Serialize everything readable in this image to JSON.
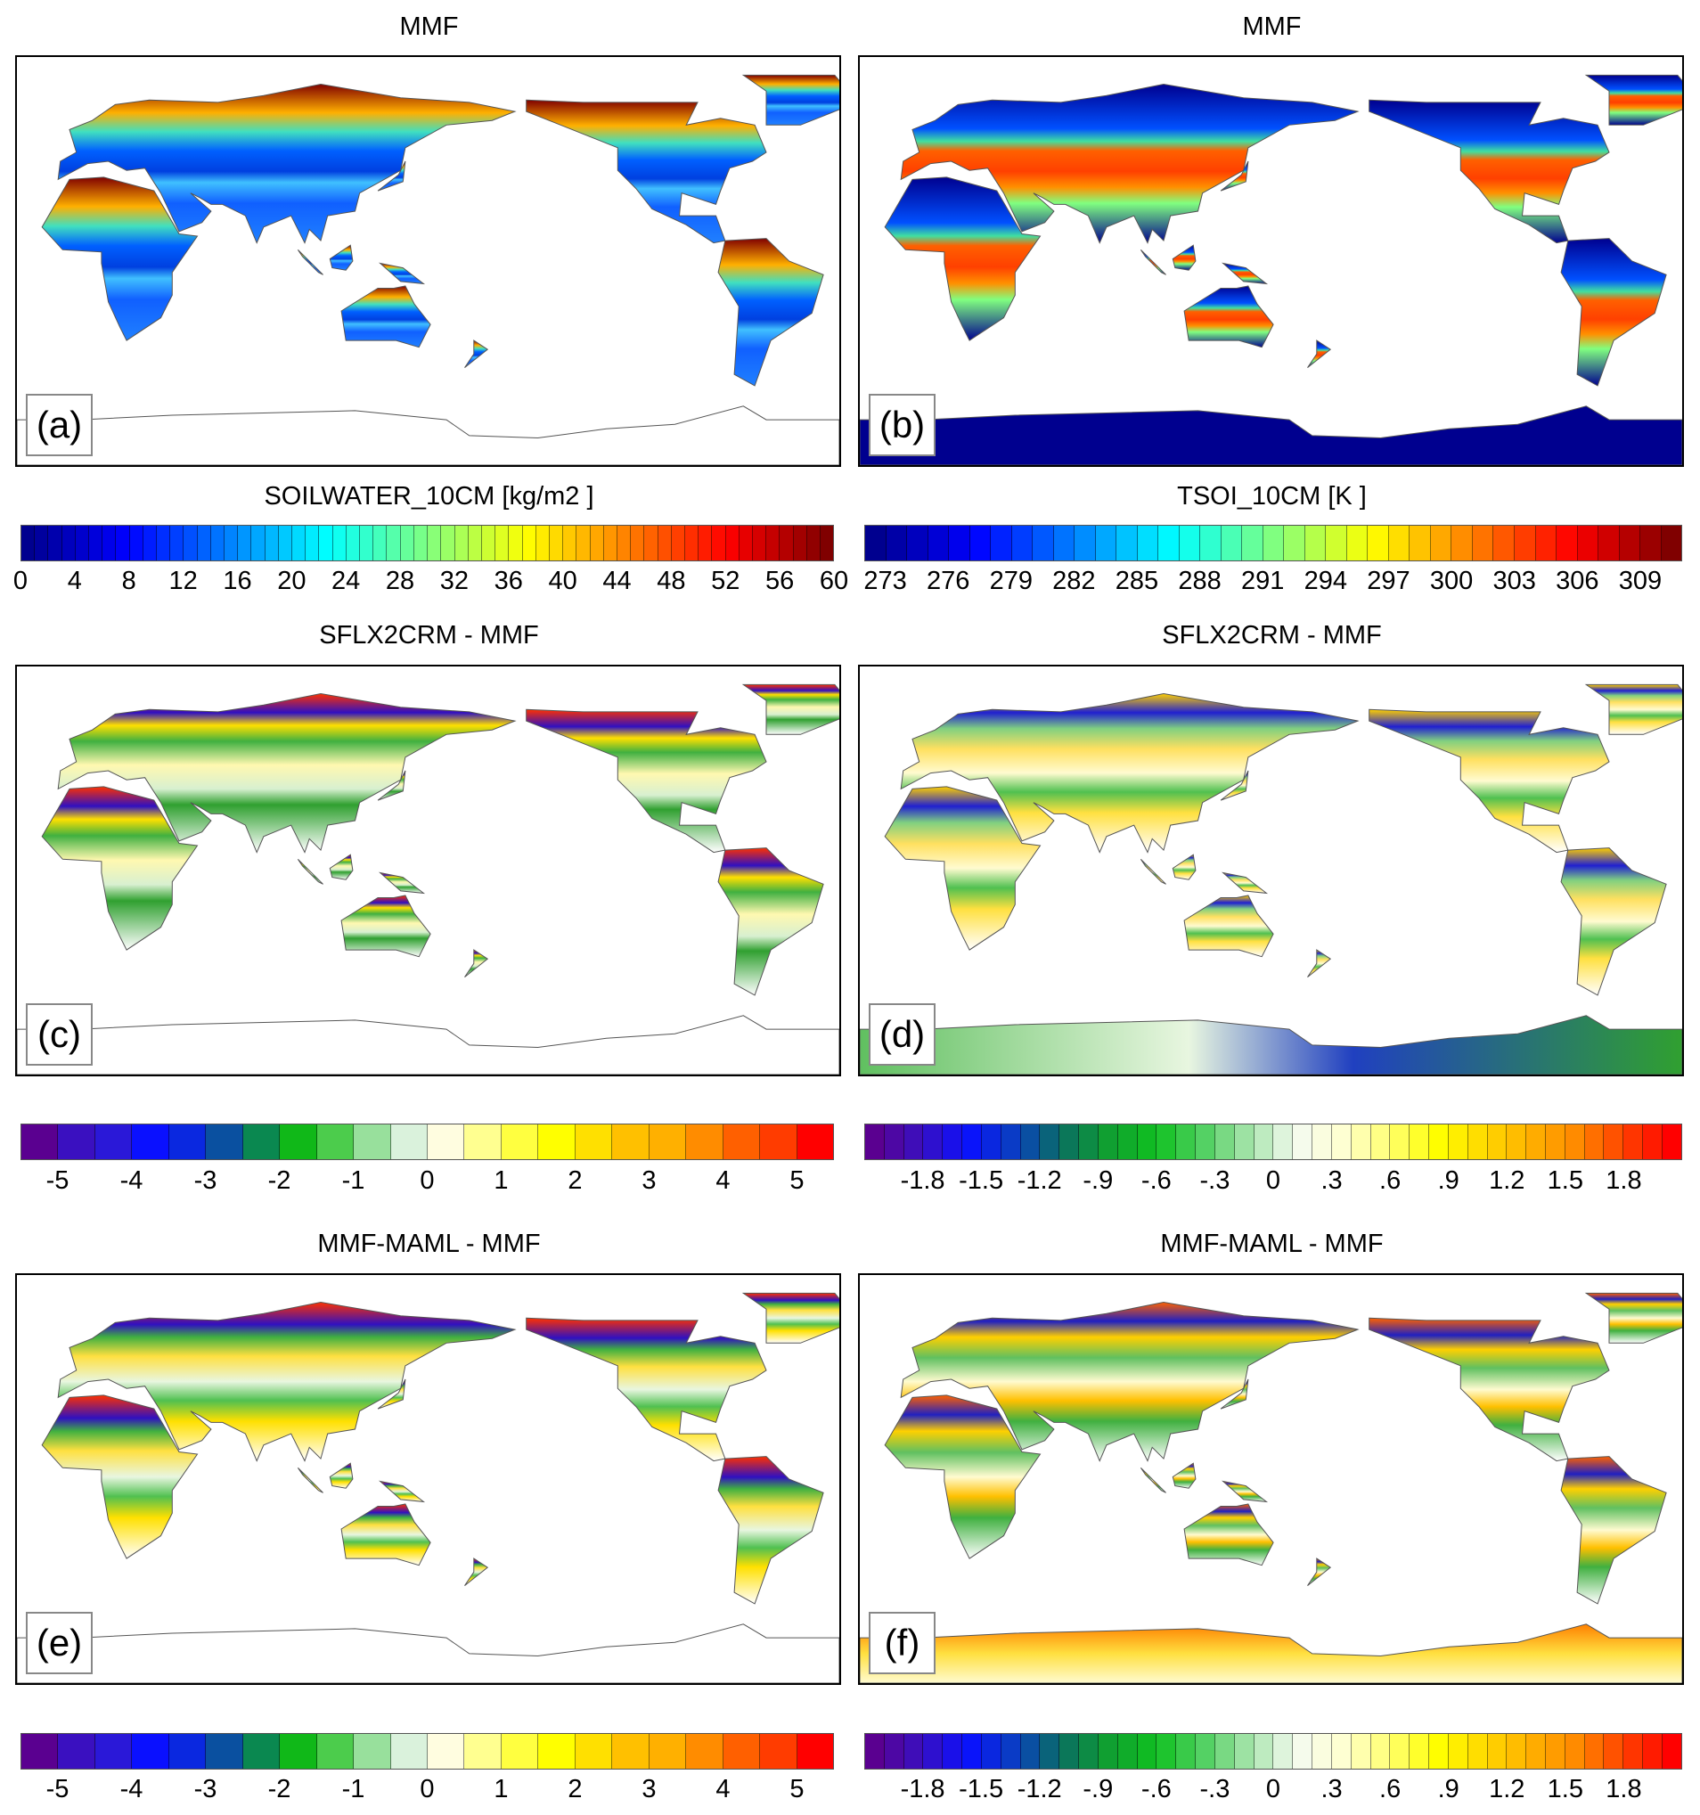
{
  "chart_data": [
    {
      "panel": "(a)",
      "title": "MMF",
      "variable": "SOILWATER_10CM [kg/m2 ]",
      "type": "heatmap",
      "levels": {
        "min": 0,
        "max": 60,
        "step": 1
      },
      "tick_labels": [
        "0",
        "4",
        "8",
        "12",
        "16",
        "20",
        "24",
        "28",
        "32",
        "36",
        "40",
        "44",
        "48",
        "52",
        "56",
        "60"
      ],
      "colormap": [
        "#00008f",
        "#0000ff",
        "#0080ff",
        "#00ffff",
        "#80ff80",
        "#ffff00",
        "#ff8000",
        "#ff0000",
        "#800000"
      ]
    },
    {
      "panel": "(b)",
      "title": "MMF",
      "variable": "TSOI_10CM [K ]",
      "type": "heatmap",
      "levels": {
        "min": 272,
        "max": 311,
        "step": 1
      },
      "tick_labels": [
        "273",
        "276",
        "279",
        "282",
        "285",
        "288",
        "291",
        "294",
        "297",
        "300",
        "303",
        "306",
        "309"
      ],
      "colormap": [
        "#00008f",
        "#0000ff",
        "#0080ff",
        "#00ffff",
        "#80ff80",
        "#ffff00",
        "#ff8000",
        "#ff0000",
        "#800000"
      ]
    },
    {
      "panel": "(c)",
      "title": "SFLX2CRM - MMF",
      "variable": "",
      "type": "heatmap",
      "levels": {
        "min": -5.5,
        "max": 5.5,
        "step": 0.5
      },
      "tick_labels": [
        "-5",
        "-4",
        "-3",
        "-2",
        "-1",
        "0",
        "1",
        "2",
        "3",
        "4",
        "5"
      ],
      "colormap": [
        "#5a0090",
        "#3a10c0",
        "#2a18d8",
        "#0a10ff",
        "#0a28e0",
        "#0a50a0",
        "#0a8850",
        "#10b818",
        "#4ccc4c",
        "#98e09c",
        "#daf2dc",
        "#fffde0",
        "#ffff90",
        "#ffff40",
        "#ffff00",
        "#ffe000",
        "#ffc000",
        "#ffb000",
        "#ff8c00",
        "#ff6000",
        "#ff3c00",
        "#ff0000"
      ]
    },
    {
      "panel": "(d)",
      "title": "SFLX2CRM - MMF",
      "variable": "",
      "type": "heatmap",
      "levels": {
        "min": -2.1,
        "max": 2.1,
        "step": 0.1
      },
      "tick_labels": [
        "-1.8",
        "-1.5",
        "-1.2",
        "-.9",
        "-.6",
        "-.3",
        "0",
        ".3",
        ".6",
        ".9",
        "1.2",
        "1.5",
        "1.8"
      ],
      "colormap": [
        "#5a0090",
        "#3a10c0",
        "#0a10ff",
        "#0a40c0",
        "#0a7060",
        "#10a030",
        "#10c020",
        "#50d060",
        "#a8e4ac",
        "#f4fbf0",
        "#ffffd0",
        "#ffff70",
        "#ffff00",
        "#ffd800",
        "#ffb000",
        "#ff8800",
        "#ff4000",
        "#ff0000"
      ]
    },
    {
      "panel": "(e)",
      "title": "MMF-MAML - MMF",
      "variable": "",
      "type": "heatmap",
      "levels": {
        "min": -5.5,
        "max": 5.5,
        "step": 0.5
      },
      "tick_labels": [
        "-5",
        "-4",
        "-3",
        "-2",
        "-1",
        "0",
        "1",
        "2",
        "3",
        "4",
        "5"
      ],
      "colormap": "same as (c)"
    },
    {
      "panel": "(f)",
      "title": "MMF-MAML - MMF",
      "variable": "",
      "type": "heatmap",
      "levels": {
        "min": -2.1,
        "max": 2.1,
        "step": 0.1
      },
      "tick_labels": [
        "-1.8",
        "-1.5",
        "-1.2",
        "-.9",
        "-.6",
        "-.3",
        "0",
        ".3",
        ".6",
        ".9",
        "1.2",
        "1.5",
        "1.8"
      ],
      "colormap": "same as (d)"
    }
  ]
}
